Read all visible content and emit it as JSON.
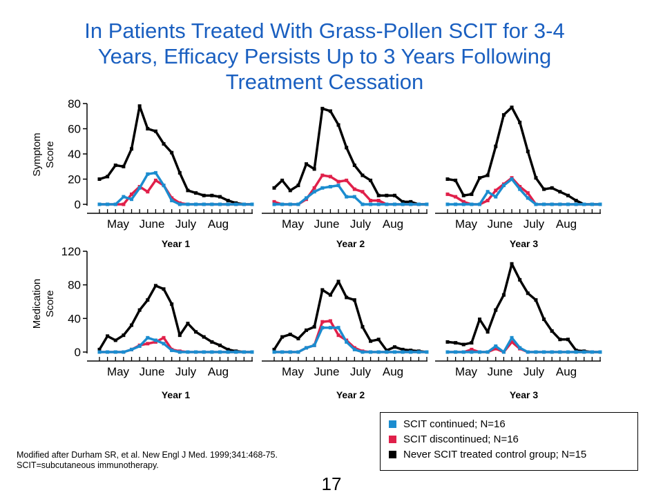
{
  "title_lines": [
    "In Patients Treated With Grass-Pollen SCIT for 3-4",
    "Years, Efficacy Persists Up to 3 Years Following",
    "Treatment Cessation"
  ],
  "colors": {
    "continued": "#1b8ccf",
    "discontinued": "#e0204a",
    "control": "#000000",
    "title": "#1a5fc0"
  },
  "chart_data": [
    {
      "type": "line",
      "panel": "symptom-year-1",
      "ylabel": "Symptom Score",
      "xlabel": "Year 1",
      "ylim": [
        0,
        80
      ],
      "yticks": [
        0,
        20,
        40,
        60,
        80
      ],
      "x_ticks": [
        "May",
        "June",
        "July",
        "Aug"
      ],
      "x_count": 20,
      "series": [
        {
          "name": "Never SCIT treated control group; N=15",
          "key": "control",
          "values": [
            20,
            22,
            31,
            30,
            44,
            78,
            60,
            58,
            48,
            41,
            25,
            11,
            9,
            7,
            7,
            6,
            3,
            1,
            0,
            0
          ]
        },
        {
          "name": "SCIT discontinued; N=16",
          "key": "discontinued",
          "values": [
            0,
            0,
            0,
            0,
            8,
            14,
            10,
            19,
            15,
            5,
            1,
            0,
            0,
            0,
            0,
            0,
            0,
            0,
            0,
            0
          ]
        },
        {
          "name": "SCIT continued; N=16",
          "key": "continued",
          "values": [
            0,
            0,
            0,
            6,
            4,
            13,
            24,
            25,
            15,
            3,
            0,
            0,
            0,
            0,
            0,
            0,
            0,
            0,
            0,
            0
          ]
        }
      ]
    },
    {
      "type": "line",
      "panel": "symptom-year-2",
      "ylabel": "Symptom Score",
      "xlabel": "Year 2",
      "ylim": [
        0,
        80
      ],
      "yticks": [
        0,
        20,
        40,
        60,
        80
      ],
      "x_ticks": [
        "May",
        "June",
        "July",
        "Aug"
      ],
      "x_count": 20,
      "series": [
        {
          "name": "Never SCIT treated control group; N=15",
          "key": "control",
          "values": [
            13,
            19,
            11,
            15,
            32,
            28,
            76,
            74,
            63,
            45,
            31,
            23,
            19,
            7,
            7,
            7,
            2,
            2,
            0,
            0
          ]
        },
        {
          "name": "SCIT discontinued; N=16",
          "key": "discontinued",
          "values": [
            2,
            0,
            0,
            0,
            4,
            13,
            23,
            22,
            18,
            19,
            12,
            10,
            3,
            3,
            0,
            0,
            0,
            0,
            0,
            0
          ]
        },
        {
          "name": "SCIT continued; N=16",
          "key": "continued",
          "values": [
            0,
            0,
            0,
            0,
            5,
            10,
            13,
            14,
            15,
            6,
            6,
            0,
            0,
            0,
            0,
            0,
            0,
            0,
            0,
            0
          ]
        }
      ]
    },
    {
      "type": "line",
      "panel": "symptom-year-3",
      "ylabel": "Symptom Score",
      "xlabel": "Year 3",
      "ylim": [
        0,
        80
      ],
      "yticks": [
        0,
        20,
        40,
        60,
        80
      ],
      "x_ticks": [
        "May",
        "June",
        "July",
        "Aug"
      ],
      "x_count": 20,
      "series": [
        {
          "name": "Never SCIT treated control group; N=15",
          "key": "control",
          "values": [
            20,
            19,
            7,
            8,
            21,
            23,
            46,
            71,
            77,
            65,
            42,
            21,
            12,
            13,
            10,
            7,
            3,
            0,
            0,
            0
          ]
        },
        {
          "name": "SCIT discontinued; N=16",
          "key": "discontinued",
          "values": [
            8,
            6,
            2,
            0,
            0,
            3,
            11,
            16,
            21,
            14,
            9,
            0,
            0,
            0,
            0,
            0,
            0,
            0,
            0,
            0
          ]
        },
        {
          "name": "SCIT continued; N=16",
          "key": "continued",
          "values": [
            0,
            0,
            0,
            0,
            0,
            10,
            6,
            15,
            20,
            12,
            5,
            0,
            0,
            0,
            0,
            0,
            0,
            0,
            0,
            0
          ]
        }
      ]
    },
    {
      "type": "line",
      "panel": "medication-year-1",
      "ylabel": "Medication Score",
      "xlabel": "Year 1",
      "ylim": [
        0,
        120
      ],
      "yticks": [
        0,
        40,
        80,
        120
      ],
      "x_ticks": [
        "May",
        "June",
        "July",
        "Aug"
      ],
      "x_count": 20,
      "series": [
        {
          "name": "Never SCIT treated control group; N=15",
          "key": "control",
          "values": [
            3,
            19,
            14,
            20,
            32,
            50,
            62,
            79,
            75,
            57,
            20,
            34,
            24,
            18,
            12,
            8,
            3,
            1,
            0,
            0
          ]
        },
        {
          "name": "SCIT discontinued; N=16",
          "key": "discontinued",
          "values": [
            0,
            0,
            0,
            0,
            3,
            8,
            10,
            12,
            17,
            3,
            1,
            0,
            0,
            0,
            0,
            0,
            0,
            0,
            0,
            0
          ]
        },
        {
          "name": "SCIT continued; N=16",
          "key": "continued",
          "values": [
            0,
            0,
            0,
            0,
            3,
            7,
            17,
            14,
            10,
            2,
            0,
            0,
            0,
            0,
            0,
            0,
            0,
            0,
            0,
            0
          ]
        }
      ]
    },
    {
      "type": "line",
      "panel": "medication-year-2",
      "ylabel": "Medication Score",
      "xlabel": "Year 2",
      "ylim": [
        0,
        120
      ],
      "yticks": [
        0,
        40,
        80,
        120
      ],
      "x_ticks": [
        "May",
        "June",
        "July",
        "Aug"
      ],
      "x_count": 20,
      "series": [
        {
          "name": "Never SCIT treated control group; N=15",
          "key": "control",
          "values": [
            3,
            18,
            21,
            16,
            26,
            30,
            74,
            68,
            84,
            65,
            62,
            30,
            13,
            15,
            2,
            6,
            3,
            2,
            1,
            0
          ]
        },
        {
          "name": "SCIT discontinued; N=16",
          "key": "discontinued",
          "values": [
            0,
            0,
            0,
            0,
            5,
            8,
            36,
            37,
            20,
            14,
            5,
            1,
            0,
            0,
            0,
            0,
            0,
            0,
            0,
            0
          ]
        },
        {
          "name": "SCIT continued; N=16",
          "key": "continued",
          "values": [
            0,
            0,
            0,
            0,
            5,
            8,
            29,
            29,
            29,
            12,
            3,
            0,
            0,
            0,
            0,
            0,
            0,
            0,
            0,
            0
          ]
        }
      ]
    },
    {
      "type": "line",
      "panel": "medication-year-3",
      "ylabel": "Medication Score",
      "xlabel": "Year 3",
      "ylim": [
        0,
        120
      ],
      "yticks": [
        0,
        40,
        80,
        120
      ],
      "x_ticks": [
        "May",
        "June",
        "July",
        "Aug"
      ],
      "x_count": 20,
      "series": [
        {
          "name": "Never SCIT treated control group; N=15",
          "key": "control",
          "values": [
            12,
            11,
            9,
            11,
            39,
            24,
            50,
            68,
            105,
            86,
            70,
            62,
            39,
            25,
            15,
            15,
            2,
            1,
            0,
            0
          ]
        },
        {
          "name": "SCIT discontinued; N=16",
          "key": "discontinued",
          "values": [
            0,
            0,
            0,
            3,
            0,
            0,
            4,
            0,
            12,
            4,
            0,
            0,
            0,
            0,
            0,
            0,
            0,
            0,
            0,
            0
          ]
        },
        {
          "name": "SCIT continued; N=16",
          "key": "continued",
          "values": [
            0,
            0,
            0,
            0,
            0,
            0,
            7,
            0,
            17,
            5,
            0,
            0,
            0,
            0,
            0,
            0,
            0,
            0,
            0,
            0
          ]
        }
      ]
    }
  ],
  "legend": {
    "items": [
      {
        "key": "continued",
        "label": "SCIT continued; N=16"
      },
      {
        "key": "discontinued",
        "label": "SCIT discontinued; N=16"
      },
      {
        "key": "control",
        "label": "Never SCIT treated control group; N=15"
      }
    ]
  },
  "reference": {
    "line1": "Modified after Durham SR, et al. New Engl J Med. 1999;341:468-75.",
    "line2": "SCIT=subcutaneous  immunotherapy."
  },
  "page_number": "17"
}
